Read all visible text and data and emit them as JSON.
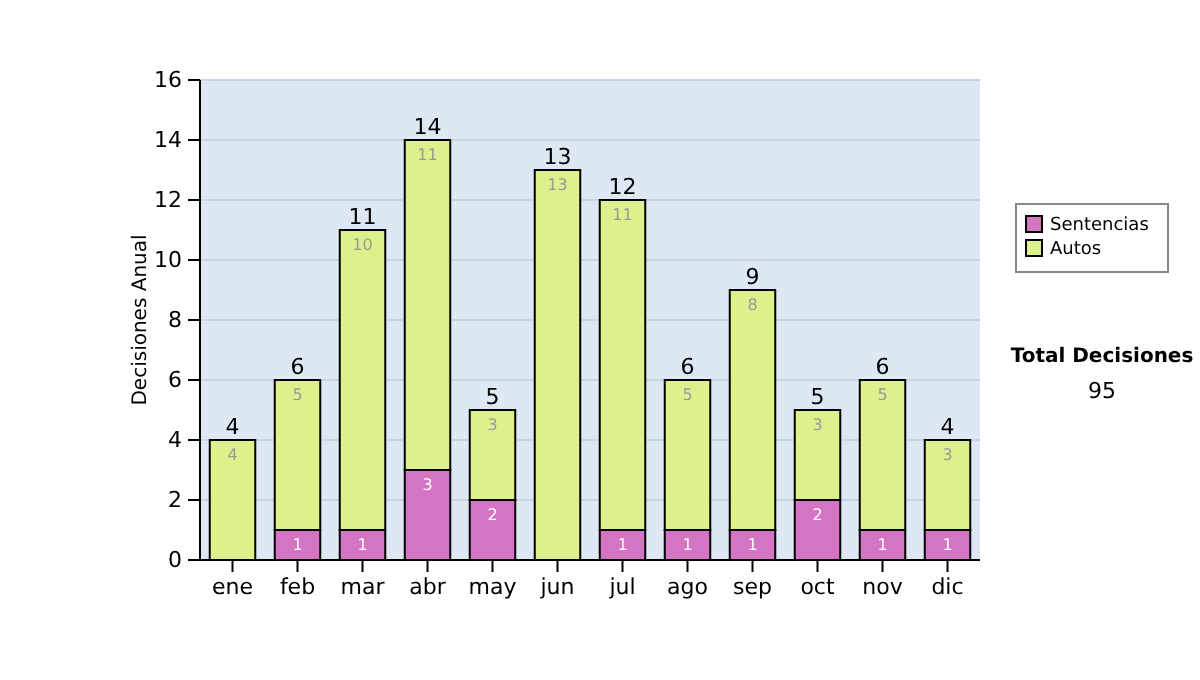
{
  "chart_data": {
    "type": "bar",
    "stacked": true,
    "ylabel": "Decisiones Anual",
    "categories": [
      "ene",
      "feb",
      "mar",
      "abr",
      "may",
      "jun",
      "jul",
      "ago",
      "sep",
      "oct",
      "nov",
      "dic"
    ],
    "series": [
      {
        "name": "Sentencias",
        "color": "#d475c4",
        "values": [
          0,
          1,
          1,
          3,
          2,
          0,
          1,
          1,
          1,
          2,
          1,
          1
        ],
        "value_labels": [
          null,
          "1",
          "1",
          "3",
          "2",
          null,
          "1",
          "1",
          "1",
          "2",
          "1",
          "1"
        ]
      },
      {
        "name": "Autos",
        "color": "#dcf08c",
        "values": [
          4,
          5,
          10,
          11,
          3,
          13,
          11,
          5,
          8,
          3,
          5,
          3
        ],
        "value_labels": [
          "4",
          "5",
          "10",
          "11",
          "3",
          "13",
          "11",
          "5",
          "8",
          "3",
          "5",
          "3"
        ]
      }
    ],
    "totals": [
      "4",
      "6",
      "11",
      "14",
      "5",
      "13",
      "12",
      "6",
      "9",
      "5",
      "6",
      "4"
    ],
    "ylim": [
      0,
      16
    ],
    "yticks": [
      0,
      2,
      4,
      6,
      8,
      10,
      12,
      14,
      16
    ],
    "grid": "y",
    "legend": "right",
    "annotations": [
      "Total Decisiones",
      "95"
    ]
  }
}
